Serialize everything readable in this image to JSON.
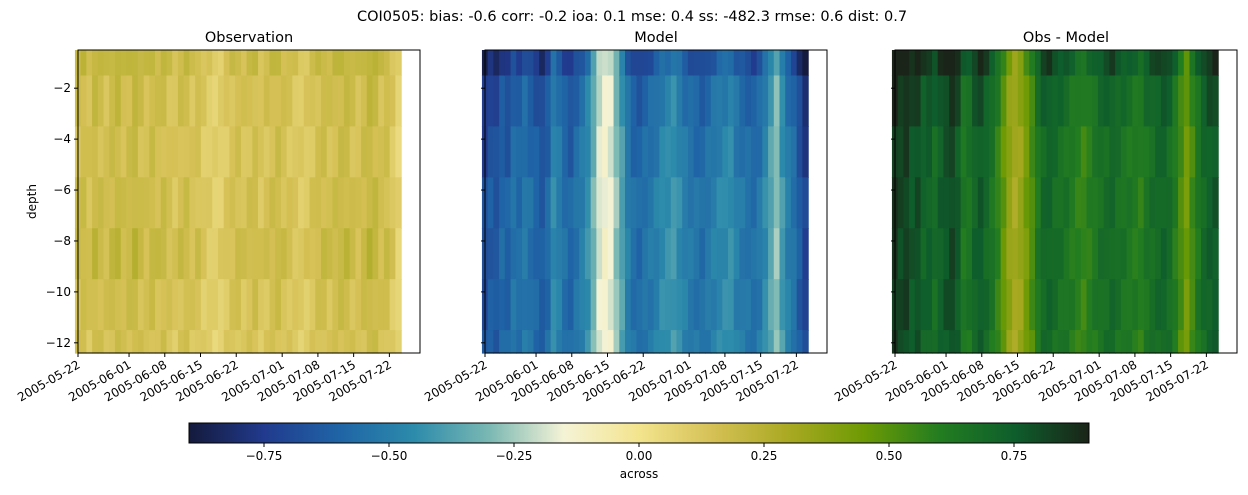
{
  "chart_data": {
    "suptitle": "COI0505: bias: -0.6  corr: -0.2  ioa: 0.1  mse: 0.4  ss: -482.3  rmse: 0.6  dist: 0.7",
    "type": "heatmap",
    "panels": [
      {
        "title": "Observation",
        "ylabel": "depth",
        "column_values": [
          0.2,
          0.22,
          0.18,
          0.24,
          0.21,
          0.19,
          0.23,
          0.25,
          0.2,
          0.22,
          0.26,
          0.21,
          0.19,
          0.23,
          0.2,
          0.22,
          0.18,
          0.16,
          0.2,
          0.21,
          0.17,
          0.19,
          0.14,
          0.12,
          0.1,
          0.11,
          0.15,
          0.18,
          0.2,
          0.17,
          0.19,
          0.21,
          0.16,
          0.18,
          0.2,
          0.22,
          0.19,
          0.17,
          0.15,
          0.13,
          0.14,
          0.17,
          0.2,
          0.22,
          0.19,
          0.21,
          0.23,
          0.24,
          0.2,
          0.18,
          0.22,
          0.26,
          0.24,
          0.19,
          0.21,
          0.15,
          0.08
        ],
        "depth_scale": [
          0.95,
          0.8,
          0.75,
          0.8,
          0.9,
          0.75,
          0.7
        ],
        "column_jitter": true
      },
      {
        "title": "Model",
        "column_values": [
          -0.76,
          -0.7,
          -0.72,
          -0.65,
          -0.68,
          -0.6,
          -0.63,
          -0.58,
          -0.62,
          -0.66,
          -0.7,
          -0.64,
          -0.5,
          -0.55,
          -0.62,
          -0.66,
          -0.6,
          -0.55,
          -0.48,
          -0.35,
          -0.2,
          -0.15,
          -0.18,
          -0.3,
          -0.42,
          -0.55,
          -0.62,
          -0.64,
          -0.6,
          -0.58,
          -0.55,
          -0.5,
          -0.48,
          -0.45,
          -0.5,
          -0.55,
          -0.58,
          -0.6,
          -0.62,
          -0.58,
          -0.55,
          -0.52,
          -0.5,
          -0.48,
          -0.55,
          -0.58,
          -0.6,
          -0.62,
          -0.58,
          -0.5,
          -0.4,
          -0.3,
          -0.45,
          -0.55,
          -0.6,
          -0.7,
          -0.8
        ],
        "depth_scale": [
          1.15,
          1.0,
          0.95,
          0.9,
          0.9,
          0.9,
          0.88
        ],
        "column_jitter": true
      },
      {
        "title": "Obs - Model",
        "column_values": [
          0.95,
          0.9,
          0.92,
          0.85,
          0.88,
          0.8,
          0.82,
          0.76,
          0.82,
          0.86,
          0.9,
          0.84,
          0.7,
          0.72,
          0.8,
          0.84,
          0.78,
          0.72,
          0.64,
          0.52,
          0.4,
          0.34,
          0.38,
          0.48,
          0.58,
          0.7,
          0.78,
          0.8,
          0.76,
          0.74,
          0.72,
          0.68,
          0.65,
          0.62,
          0.66,
          0.7,
          0.74,
          0.76,
          0.78,
          0.74,
          0.72,
          0.7,
          0.68,
          0.66,
          0.72,
          0.75,
          0.78,
          0.8,
          0.76,
          0.68,
          0.58,
          0.48,
          0.6,
          0.7,
          0.78,
          0.82,
          0.84
        ],
        "depth_scale": [
          1.05,
          0.95,
          0.9,
          0.9,
          0.9,
          0.9,
          0.88
        ],
        "column_jitter": true
      }
    ],
    "depth_bands": [
      -1.5,
      -3.5,
      -5.5,
      -7.5,
      -9.5,
      -11.5
    ],
    "ylim": [
      -12.4,
      -0.5
    ],
    "yticks": [
      -2,
      -4,
      -6,
      -8,
      -10,
      -12
    ],
    "yticklabels": [
      "−2",
      "−4",
      "−6",
      "−8",
      "−10",
      "−12"
    ],
    "xlim_days": [
      0,
      67
    ],
    "xticks": [
      {
        "label": "2005-05-22",
        "day": 0
      },
      {
        "label": "2005-06-01",
        "day": 10
      },
      {
        "label": "2005-06-08",
        "day": 17
      },
      {
        "label": "2005-06-15",
        "day": 24
      },
      {
        "label": "2005-06-22",
        "day": 31
      },
      {
        "label": "2005-07-01",
        "day": 40
      },
      {
        "label": "2005-07-08",
        "day": 47
      },
      {
        "label": "2005-07-15",
        "day": 54
      },
      {
        "label": "2005-07-22",
        "day": 61
      }
    ],
    "colorbar": {
      "label": "across",
      "vmin": -0.9,
      "vmax": 0.9,
      "ticks": [
        -0.75,
        -0.5,
        -0.25,
        0.0,
        0.25,
        0.5,
        0.75
      ],
      "ticklabels": [
        "−0.75",
        "−0.50",
        "−0.25",
        "0.00",
        "0.25",
        "0.50",
        "0.75"
      ],
      "colormap": [
        "#141a3c",
        "#213a8d",
        "#1f64a6",
        "#2c8bab",
        "#7ab8b3",
        "#f5f3d6",
        "#f3e48e",
        "#d4c054",
        "#a9a922",
        "#6d9a04",
        "#237d20",
        "#0e5e2c",
        "#1a2418"
      ]
    }
  }
}
